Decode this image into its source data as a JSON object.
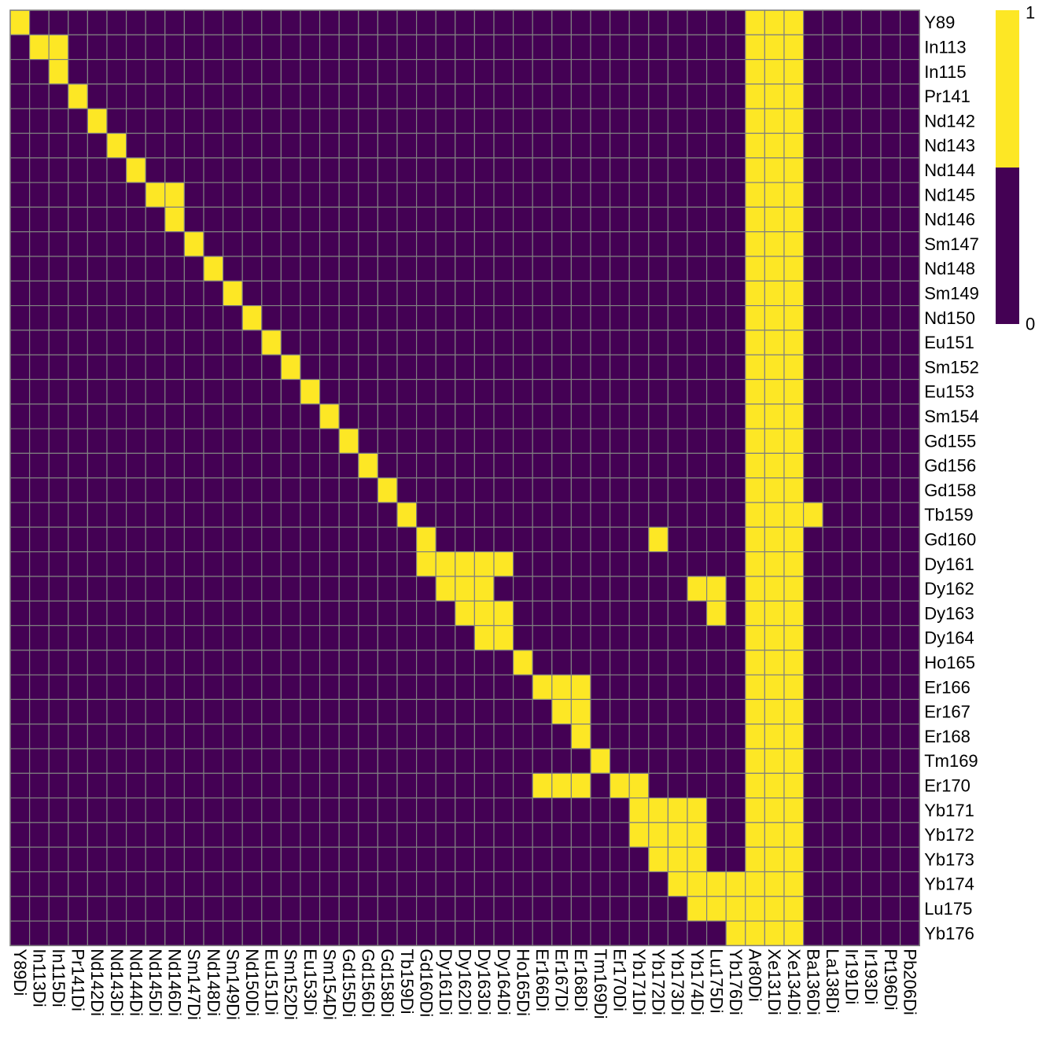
{
  "chart_data": {
    "type": "heatmap",
    "title": "",
    "colors": {
      "low": "#440154",
      "high": "#FDE725",
      "grid": "#808080"
    },
    "legend": {
      "position": "top-right",
      "max_label": "1",
      "min_label": "0"
    },
    "rows": [
      "Y89",
      "In113",
      "In115",
      "Pr141",
      "Nd142",
      "Nd143",
      "Nd144",
      "Nd145",
      "Nd146",
      "Sm147",
      "Nd148",
      "Sm149",
      "Nd150",
      "Eu151",
      "Sm152",
      "Eu153",
      "Sm154",
      "Gd155",
      "Gd156",
      "Gd158",
      "Tb159",
      "Gd160",
      "Dy161",
      "Dy162",
      "Dy163",
      "Dy164",
      "Ho165",
      "Er166",
      "Er167",
      "Er168",
      "Tm169",
      "Er170",
      "Yb171",
      "Yb172",
      "Yb173",
      "Yb174",
      "Lu175",
      "Yb176"
    ],
    "columns": [
      "Y89Di",
      "In113Di",
      "In115Di",
      "Pr141Di",
      "Nd142Di",
      "Nd143Di",
      "Nd144Di",
      "Nd145Di",
      "Nd146Di",
      "Sm147Di",
      "Nd148Di",
      "Sm149Di",
      "Nd150Di",
      "Eu151Di",
      "Sm152Di",
      "Eu153Di",
      "Sm154Di",
      "Gd155Di",
      "Gd156Di",
      "Gd158Di",
      "Tb159Di",
      "Gd160Di",
      "Dy161Di",
      "Dy162Di",
      "Dy163Di",
      "Dy164Di",
      "Ho165Di",
      "Er166Di",
      "Er167Di",
      "Er168Di",
      "Tm169Di",
      "Er170Di",
      "Yb171Di",
      "Yb172Di",
      "Yb173Di",
      "Yb174Di",
      "Lu175Di",
      "Yb176Di",
      "Ar80Di",
      "Xe131Di",
      "Xe134Di",
      "Ba136Di",
      "La138Di",
      "Ir191Di",
      "Ir193Di",
      "Pt196Di",
      "Pb206Di"
    ],
    "ones": [
      [
        0
      ],
      [
        1,
        2
      ],
      [
        2
      ],
      [
        3
      ],
      [
        4
      ],
      [
        5
      ],
      [
        6
      ],
      [
        7,
        8
      ],
      [
        8
      ],
      [
        9
      ],
      [
        10
      ],
      [
        11
      ],
      [
        12
      ],
      [
        13
      ],
      [
        14
      ],
      [
        15
      ],
      [
        16
      ],
      [
        17
      ],
      [
        18
      ],
      [
        19
      ],
      [
        20,
        41
      ],
      [
        21,
        33
      ],
      [
        21,
        22,
        23,
        24,
        25
      ],
      [
        22,
        23,
        24,
        35,
        36
      ],
      [
        23,
        24,
        25,
        36
      ],
      [
        24,
        25
      ],
      [
        26
      ],
      [
        27,
        28,
        29
      ],
      [
        28,
        29
      ],
      [
        29
      ],
      [
        30
      ],
      [
        27,
        28,
        29,
        31,
        32
      ],
      [
        32,
        33,
        34,
        35
      ],
      [
        32,
        33,
        34,
        35
      ],
      [
        33,
        34,
        35
      ],
      [
        34,
        35,
        36,
        37
      ],
      [
        35,
        36,
        37
      ],
      [
        37
      ]
    ],
    "always_one_columns": [
      38,
      39,
      40
    ]
  }
}
